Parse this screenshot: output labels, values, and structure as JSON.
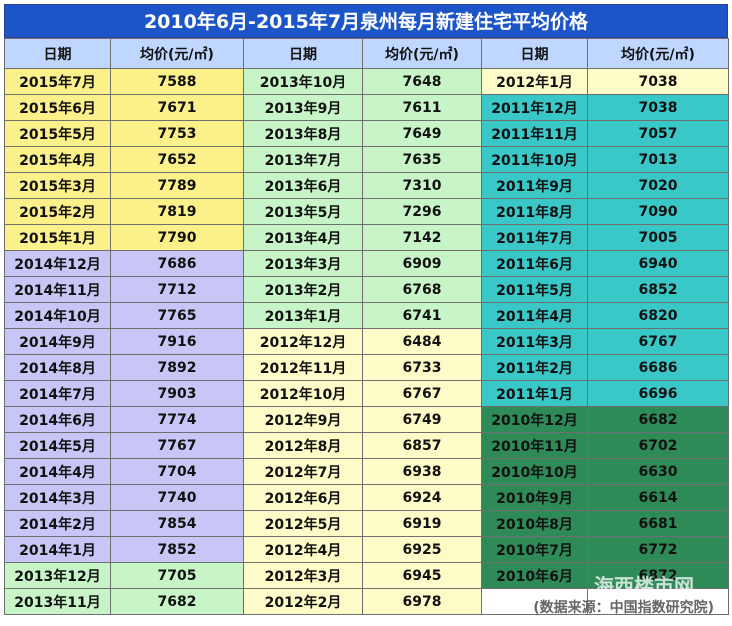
{
  "title": "2010年6月-2015年7月泉州每月新建住宅平均价格",
  "headers": [
    "日期",
    "均价(元/㎡)",
    "日期",
    "均价(元/㎡)",
    "日期",
    "均价(元/㎡)"
  ],
  "rows": [
    [
      {
        "d": "2015年7月",
        "v": "7588",
        "c": "yellow"
      },
      {
        "d": "2013年10月",
        "v": "7648",
        "c": "lgreen"
      },
      {
        "d": "2012年1月",
        "v": "7038",
        "c": "cream"
      }
    ],
    [
      {
        "d": "2015年6月",
        "v": "7671",
        "c": "yellow"
      },
      {
        "d": "2013年9月",
        "v": "7611",
        "c": "lgreen"
      },
      {
        "d": "2011年12月",
        "v": "7038",
        "c": "teal"
      }
    ],
    [
      {
        "d": "2015年5月",
        "v": "7753",
        "c": "yellow"
      },
      {
        "d": "2013年8月",
        "v": "7649",
        "c": "lgreen"
      },
      {
        "d": "2011年11月",
        "v": "7057",
        "c": "teal"
      }
    ],
    [
      {
        "d": "2015年4月",
        "v": "7652",
        "c": "yellow"
      },
      {
        "d": "2013年7月",
        "v": "7635",
        "c": "lgreen"
      },
      {
        "d": "2011年10月",
        "v": "7013",
        "c": "teal"
      }
    ],
    [
      {
        "d": "2015年3月",
        "v": "7789",
        "c": "yellow"
      },
      {
        "d": "2013年6月",
        "v": "7310",
        "c": "lgreen"
      },
      {
        "d": "2011年9月",
        "v": "7020",
        "c": "teal"
      }
    ],
    [
      {
        "d": "2015年2月",
        "v": "7819",
        "c": "yellow"
      },
      {
        "d": "2013年5月",
        "v": "7296",
        "c": "lgreen"
      },
      {
        "d": "2011年8月",
        "v": "7090",
        "c": "teal"
      }
    ],
    [
      {
        "d": "2015年1月",
        "v": "7790",
        "c": "yellow"
      },
      {
        "d": "2013年4月",
        "v": "7142",
        "c": "lgreen"
      },
      {
        "d": "2011年7月",
        "v": "7005",
        "c": "teal"
      }
    ],
    [
      {
        "d": "2014年12月",
        "v": "7686",
        "c": "purple"
      },
      {
        "d": "2013年3月",
        "v": "6909",
        "c": "lgreen"
      },
      {
        "d": "2011年6月",
        "v": "6940",
        "c": "teal"
      }
    ],
    [
      {
        "d": "2014年11月",
        "v": "7712",
        "c": "purple"
      },
      {
        "d": "2013年2月",
        "v": "6768",
        "c": "lgreen"
      },
      {
        "d": "2011年5月",
        "v": "6852",
        "c": "teal"
      }
    ],
    [
      {
        "d": "2014年10月",
        "v": "7765",
        "c": "purple"
      },
      {
        "d": "2013年1月",
        "v": "6741",
        "c": "lgreen"
      },
      {
        "d": "2011年4月",
        "v": "6820",
        "c": "teal"
      }
    ],
    [
      {
        "d": "2014年9月",
        "v": "7916",
        "c": "purple"
      },
      {
        "d": "2012年12月",
        "v": "6484",
        "c": "cream"
      },
      {
        "d": "2011年3月",
        "v": "6767",
        "c": "teal"
      }
    ],
    [
      {
        "d": "2014年8月",
        "v": "7892",
        "c": "purple"
      },
      {
        "d": "2012年11月",
        "v": "6733",
        "c": "cream"
      },
      {
        "d": "2011年2月",
        "v": "6686",
        "c": "teal"
      }
    ],
    [
      {
        "d": "2014年7月",
        "v": "7903",
        "c": "purple"
      },
      {
        "d": "2012年10月",
        "v": "6767",
        "c": "cream"
      },
      {
        "d": "2011年1月",
        "v": "6696",
        "c": "teal"
      }
    ],
    [
      {
        "d": "2014年6月",
        "v": "7774",
        "c": "purple"
      },
      {
        "d": "2012年9月",
        "v": "6749",
        "c": "cream"
      },
      {
        "d": "2010年12月",
        "v": "6682",
        "c": "green"
      }
    ],
    [
      {
        "d": "2014年5月",
        "v": "7767",
        "c": "purple"
      },
      {
        "d": "2012年8月",
        "v": "6857",
        "c": "cream"
      },
      {
        "d": "2010年11月",
        "v": "6702",
        "c": "green"
      }
    ],
    [
      {
        "d": "2014年4月",
        "v": "7704",
        "c": "purple"
      },
      {
        "d": "2012年7月",
        "v": "6938",
        "c": "cream"
      },
      {
        "d": "2010年10月",
        "v": "6630",
        "c": "green"
      }
    ],
    [
      {
        "d": "2014年3月",
        "v": "7740",
        "c": "purple"
      },
      {
        "d": "2012年6月",
        "v": "6924",
        "c": "cream"
      },
      {
        "d": "2010年9月",
        "v": "6614",
        "c": "green"
      }
    ],
    [
      {
        "d": "2014年2月",
        "v": "7854",
        "c": "purple"
      },
      {
        "d": "2012年5月",
        "v": "6919",
        "c": "cream"
      },
      {
        "d": "2010年8月",
        "v": "6681",
        "c": "green"
      }
    ],
    [
      {
        "d": "2014年1月",
        "v": "7852",
        "c": "purple"
      },
      {
        "d": "2012年4月",
        "v": "6925",
        "c": "cream"
      },
      {
        "d": "2010年7月",
        "v": "6772",
        "c": "green"
      }
    ],
    [
      {
        "d": "2013年12月",
        "v": "7705",
        "c": "lgreen"
      },
      {
        "d": "2012年3月",
        "v": "6945",
        "c": "cream"
      },
      {
        "d": "2010年6月",
        "v": "6872",
        "c": "green"
      }
    ],
    [
      {
        "d": "2013年11月",
        "v": "7682",
        "c": "lgreen"
      },
      {
        "d": "2012年2月",
        "v": "6978",
        "c": "cream"
      },
      {
        "d": "",
        "v": "",
        "c": "white"
      }
    ]
  ],
  "source": "(数据来源：中国指数研究院)",
  "watermark": "海西楼市网"
}
